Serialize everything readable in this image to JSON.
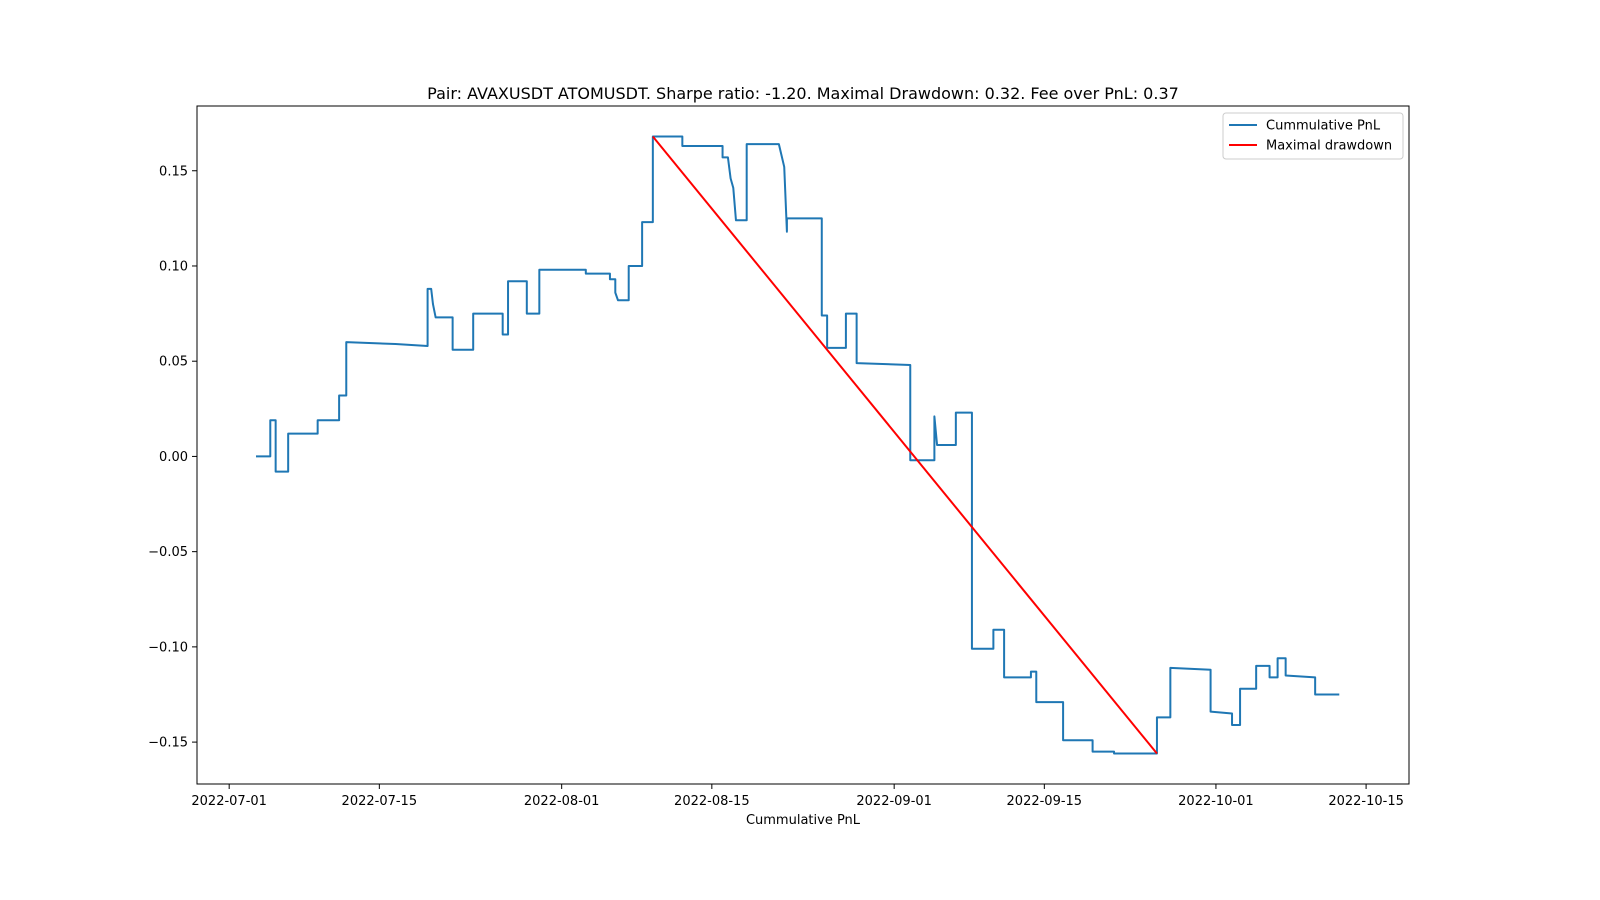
{
  "chart_data": {
    "type": "line",
    "title": "Pair: AVAXUSDT ATOMUSDT. Sharpe ratio: -1.20. Maximal Drawdown: 0.32. Fee over PnL: 0.37",
    "xlabel": "Cummulative PnL",
    "ylabel": "",
    "xlim": [
      "2022-06-28",
      "2022-10-19"
    ],
    "ylim": [
      -0.172,
      0.184
    ],
    "x_ticks": [
      "2022-07-01",
      "2022-07-15",
      "2022-08-01",
      "2022-08-15",
      "2022-09-01",
      "2022-09-15",
      "2022-10-01",
      "2022-10-15"
    ],
    "y_ticks": [
      0.15,
      0.1,
      0.05,
      0.0,
      -0.05,
      -0.1,
      -0.15
    ],
    "y_tick_labels": [
      "0.15",
      "0.10",
      "0.05",
      "0.00",
      "−0.05",
      "−0.10",
      "−0.15"
    ],
    "grid": false,
    "legend_position": "top-right",
    "series": [
      {
        "name": "Cummulative PnL",
        "color": "#1f77b4",
        "style": "step",
        "points": [
          [
            "2022-07-03 12:00",
            0.0
          ],
          [
            "2022-07-04 20:00",
            0.0
          ],
          [
            "2022-07-04 20:00",
            0.019
          ],
          [
            "2022-07-05 08:00",
            0.019
          ],
          [
            "2022-07-05 08:00",
            -0.008
          ],
          [
            "2022-07-06 12:00",
            -0.008
          ],
          [
            "2022-07-06 12:00",
            0.012
          ],
          [
            "2022-07-09 06:00",
            0.012
          ],
          [
            "2022-07-09 06:00",
            0.019
          ],
          [
            "2022-07-11 06:00",
            0.019
          ],
          [
            "2022-07-11 06:00",
            0.032
          ],
          [
            "2022-07-11 22:00",
            0.032
          ],
          [
            "2022-07-11 22:00",
            0.06
          ],
          [
            "2022-07-16 12:00",
            0.059
          ],
          [
            "2022-07-16 12:00",
            0.059
          ],
          [
            "2022-07-19 12:00",
            0.058
          ],
          [
            "2022-07-19 12:00",
            0.088
          ],
          [
            "2022-07-19 20:00",
            0.088
          ],
          [
            "2022-07-20 00:00",
            0.08
          ],
          [
            "2022-07-20 06:00",
            0.073
          ],
          [
            "2022-07-21 20:00",
            0.073
          ],
          [
            "2022-07-21 20:00",
            0.056
          ],
          [
            "2022-07-23 18:00",
            0.056
          ],
          [
            "2022-07-23 18:00",
            0.075
          ],
          [
            "2022-07-26 12:00",
            0.075
          ],
          [
            "2022-07-26 12:00",
            0.064
          ],
          [
            "2022-07-27 00:00",
            0.064
          ],
          [
            "2022-07-27 00:00",
            0.092
          ],
          [
            "2022-07-28 18:00",
            0.092
          ],
          [
            "2022-07-28 18:00",
            0.075
          ],
          [
            "2022-07-29 22:00",
            0.075
          ],
          [
            "2022-07-29 22:00",
            0.098
          ],
          [
            "2022-08-03 06:00",
            0.098
          ],
          [
            "2022-08-03 06:00",
            0.096
          ],
          [
            "2022-08-05 12:00",
            0.096
          ],
          [
            "2022-08-05 12:00",
            0.093
          ],
          [
            "2022-08-06 00:00",
            0.093
          ],
          [
            "2022-08-06 00:00",
            0.086
          ],
          [
            "2022-08-06 06:00",
            0.082
          ],
          [
            "2022-08-07 06:00",
            0.082
          ],
          [
            "2022-08-07 06:00",
            0.1
          ],
          [
            "2022-08-08 12:00",
            0.1
          ],
          [
            "2022-08-08 12:00",
            0.123
          ],
          [
            "2022-08-09 12:00",
            0.123
          ],
          [
            "2022-08-09 12:00",
            0.168
          ],
          [
            "2022-08-11 18:00",
            0.168
          ],
          [
            "2022-08-12 06:00",
            0.168
          ],
          [
            "2022-08-12 06:00",
            0.163
          ],
          [
            "2022-08-16 00:00",
            0.163
          ],
          [
            "2022-08-16 00:00",
            0.157
          ],
          [
            "2022-08-16 12:00",
            0.157
          ],
          [
            "2022-08-16 18:00",
            0.146
          ],
          [
            "2022-08-17 00:00",
            0.141
          ],
          [
            "2022-08-17 06:00",
            0.124
          ],
          [
            "2022-08-18 06:00",
            0.124
          ],
          [
            "2022-08-18 06:00",
            0.164
          ],
          [
            "2022-08-21 06:00",
            0.164
          ],
          [
            "2022-08-21 12:00",
            0.158
          ],
          [
            "2022-08-21 18:00",
            0.152
          ],
          [
            "2022-08-22 00:00",
            0.118
          ],
          [
            "2022-08-22 00:00",
            0.125
          ],
          [
            "2022-08-25 06:00",
            0.125
          ],
          [
            "2022-08-25 06:00",
            0.074
          ],
          [
            "2022-08-25 18:00",
            0.074
          ],
          [
            "2022-08-25 18:00",
            0.057
          ],
          [
            "2022-08-27 12:00",
            0.057
          ],
          [
            "2022-08-27 12:00",
            0.075
          ],
          [
            "2022-08-28 12:00",
            0.075
          ],
          [
            "2022-08-28 12:00",
            0.049
          ],
          [
            "2022-09-02 12:00",
            0.048
          ],
          [
            "2022-09-02 12:00",
            -0.002
          ],
          [
            "2022-09-04 18:00",
            -0.002
          ],
          [
            "2022-09-04 18:00",
            0.021
          ],
          [
            "2022-09-05 00:00",
            0.006
          ],
          [
            "2022-09-06 18:00",
            0.006
          ],
          [
            "2022-09-06 18:00",
            0.023
          ],
          [
            "2022-09-08 06:00",
            0.023
          ],
          [
            "2022-09-08 06:00",
            -0.101
          ],
          [
            "2022-09-10 06:00",
            -0.101
          ],
          [
            "2022-09-10 06:00",
            -0.091
          ],
          [
            "2022-09-11 06:00",
            -0.091
          ],
          [
            "2022-09-11 06:00",
            -0.116
          ],
          [
            "2022-09-13 18:00",
            -0.116
          ],
          [
            "2022-09-13 18:00",
            -0.113
          ],
          [
            "2022-09-14 06:00",
            -0.113
          ],
          [
            "2022-09-14 06:00",
            -0.129
          ],
          [
            "2022-09-16 18:00",
            -0.129
          ],
          [
            "2022-09-16 18:00",
            -0.149
          ],
          [
            "2022-09-19 12:00",
            -0.149
          ],
          [
            "2022-09-19 12:00",
            -0.155
          ],
          [
            "2022-09-21 12:00",
            -0.155
          ],
          [
            "2022-09-21 12:00",
            -0.156
          ],
          [
            "2022-09-25 12:00",
            -0.156
          ],
          [
            "2022-09-25 12:00",
            -0.137
          ],
          [
            "2022-09-26 18:00",
            -0.137
          ],
          [
            "2022-09-26 18:00",
            -0.111
          ],
          [
            "2022-09-30 12:00",
            -0.112
          ],
          [
            "2022-09-30 12:00",
            -0.134
          ],
          [
            "2022-10-02 12:00",
            -0.135
          ],
          [
            "2022-10-02 12:00",
            -0.141
          ],
          [
            "2022-10-03 06:00",
            -0.141
          ],
          [
            "2022-10-03 06:00",
            -0.122
          ],
          [
            "2022-10-04 18:00",
            -0.122
          ],
          [
            "2022-10-04 18:00",
            -0.11
          ],
          [
            "2022-10-06 00:00",
            -0.11
          ],
          [
            "2022-10-06 00:00",
            -0.116
          ],
          [
            "2022-10-06 18:00",
            -0.116
          ],
          [
            "2022-10-06 18:00",
            -0.106
          ],
          [
            "2022-10-07 12:00",
            -0.106
          ],
          [
            "2022-10-07 12:00",
            -0.115
          ],
          [
            "2022-10-10 06:00",
            -0.116
          ],
          [
            "2022-10-10 06:00",
            -0.125
          ],
          [
            "2022-10-12 12:00",
            -0.125
          ]
        ]
      },
      {
        "name": "Maximal drawdown",
        "color": "#ff0000",
        "style": "line",
        "points": [
          [
            "2022-08-09 12:00",
            0.168
          ],
          [
            "2022-09-25 12:00",
            -0.156
          ]
        ]
      }
    ]
  }
}
